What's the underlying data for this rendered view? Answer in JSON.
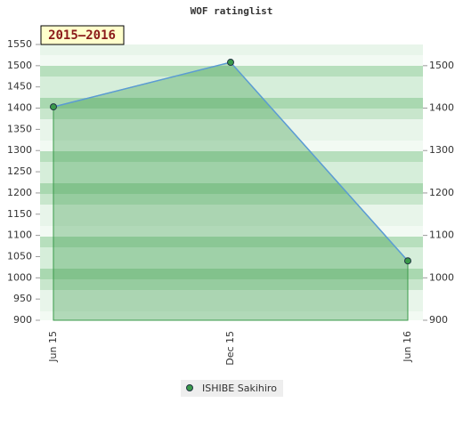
{
  "chart_data": {
    "type": "area",
    "title": "WOF ratinglist",
    "annotation": "2015–2016",
    "categories": [
      "Jun 15",
      "Dec 15",
      "Jun 16"
    ],
    "series": [
      {
        "name": "ISHIBE Sakihiro",
        "color": "#3a9a4a",
        "line_color": "#5b9bd5",
        "values": [
          1403,
          1508,
          1040
        ]
      }
    ],
    "ylim": [
      900,
      1550
    ],
    "yticks": [
      900,
      950,
      1000,
      1050,
      1100,
      1150,
      1200,
      1250,
      1300,
      1350,
      1400,
      1450,
      1500,
      1550
    ],
    "y2lim": [
      900,
      1550
    ],
    "y2ticks": [
      900,
      1000,
      1100,
      1200,
      1300,
      1400,
      1500
    ],
    "legend": "bottom"
  }
}
